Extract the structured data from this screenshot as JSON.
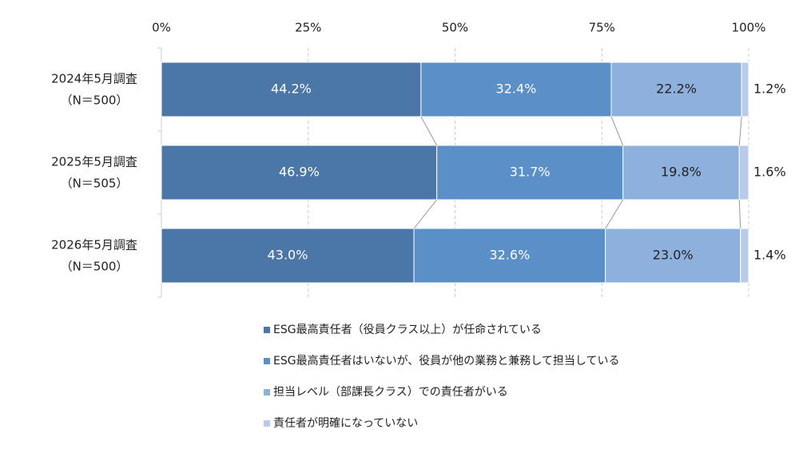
{
  "chart_data": {
    "type": "stacked-barh",
    "categories": [
      [
        "2024年5月調査",
        "（N＝500）"
      ],
      [
        "2025年5月調査",
        "（N＝505）"
      ],
      [
        "2026年5月調査",
        "（N＝500）"
      ]
    ],
    "series": [
      {
        "name": "ESG最高責任者（役員クラス以上）が任命されている",
        "color": "#4a76a8",
        "values": [
          44.2,
          46.9,
          43.0
        ],
        "value_labels": [
          "44.2%",
          "46.9%",
          "43.0%"
        ]
      },
      {
        "name": "ESG最高責任者はいないが、役員が他の業務と兼務して担当している",
        "color": "#5a8fc8",
        "values": [
          32.4,
          31.7,
          32.6
        ],
        "value_labels": [
          "32.4%",
          "31.7%",
          "32.6%"
        ]
      },
      {
        "name": "担当レベル（部課長クラス）での責任者がいる",
        "color": "#8db0dd",
        "values": [
          22.2,
          19.8,
          23.0
        ],
        "value_labels": [
          "22.2%",
          "19.8%",
          "23.0%"
        ]
      },
      {
        "name": "責任者が明確になっていない",
        "color": "#b8cbe8",
        "values": [
          1.2,
          1.6,
          1.4
        ],
        "value_labels": [
          "1.2%",
          "1.6%",
          "1.4%"
        ]
      }
    ],
    "xlim": [
      0,
      100
    ],
    "xticks": [
      {
        "value": 0,
        "label": "0%"
      },
      {
        "value": 25,
        "label": "25%"
      },
      {
        "value": 50,
        "label": "50%"
      },
      {
        "value": 75,
        "label": "75%"
      },
      {
        "value": 100,
        "label": "100%"
      }
    ],
    "grid": true
  }
}
